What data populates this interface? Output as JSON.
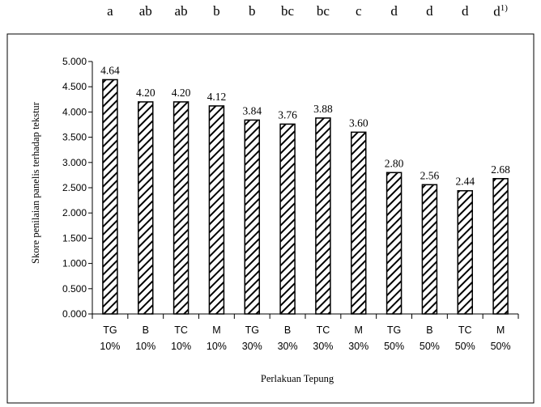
{
  "significance_letters": [
    "a",
    "ab",
    "ab",
    "b",
    "b",
    "bc",
    "bc",
    "c",
    "d",
    "d",
    "d",
    "d"
  ],
  "significance_footnote": "1)",
  "chart_data": {
    "type": "bar",
    "categories": [
      [
        "TG",
        "10%"
      ],
      [
        "B",
        "10%"
      ],
      [
        "TC",
        "10%"
      ],
      [
        "M",
        "10%"
      ],
      [
        "TG",
        "30%"
      ],
      [
        "B",
        "30%"
      ],
      [
        "TC",
        "30%"
      ],
      [
        "M",
        "30%"
      ],
      [
        "TG",
        "50%"
      ],
      [
        "B",
        "50%"
      ],
      [
        "TC",
        "50%"
      ],
      [
        "M",
        "50%"
      ]
    ],
    "values": [
      4.64,
      4.2,
      4.2,
      4.12,
      3.84,
      3.76,
      3.88,
      3.6,
      2.8,
      2.56,
      2.44,
      2.68
    ],
    "value_labels": [
      "4.64",
      "4.20",
      "4.20",
      "4.12",
      "3.84",
      "3.76",
      "3.88",
      "3.60",
      "2.80",
      "2.56",
      "2.44",
      "2.68"
    ],
    "xlabel": "Perlakuan Tepung",
    "ylabel": "Skore penilaian panelis terhadap tekstur",
    "ylim": [
      0,
      5
    ],
    "yticks": [
      "0.000",
      "0.500",
      "1.000",
      "1.500",
      "2.000",
      "2.500",
      "3.000",
      "3.500",
      "4.000",
      "4.500",
      "5.000"
    ],
    "grid": false,
    "legend": "none",
    "bar_fill": "diagonal-hatch",
    "colors": {
      "bar_stroke": "#000000",
      "hatch": "#000000",
      "background": "#ffffff"
    }
  }
}
